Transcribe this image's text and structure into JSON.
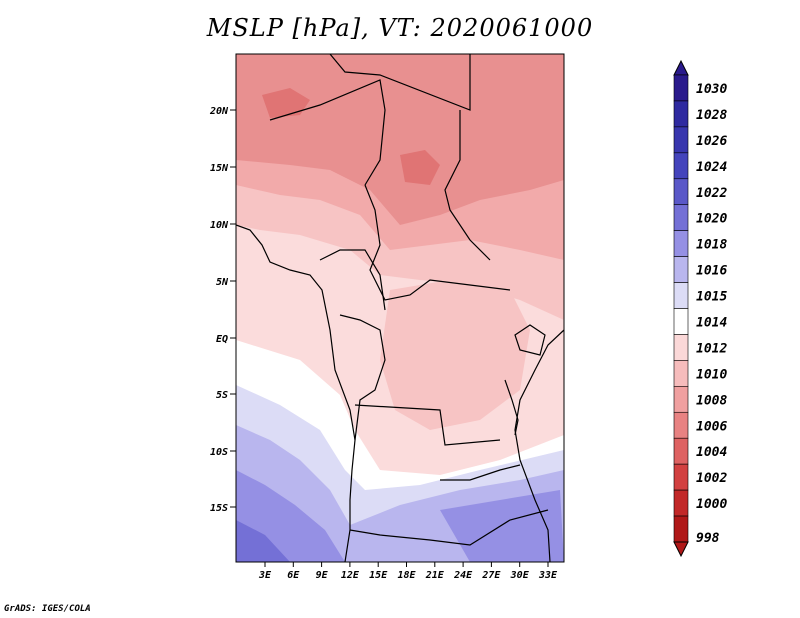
{
  "title": "MSLP [hPa], VT: 2020061000",
  "footer": "GrADS: IGES/COLA",
  "lat_ticks": [
    "20N",
    "15N",
    "10N",
    "5N",
    "EQ",
    "5S",
    "10S",
    "15S"
  ],
  "lon_ticks": [
    "3E",
    "6E",
    "9E",
    "12E",
    "15E",
    "18E",
    "21E",
    "24E",
    "27E",
    "30E",
    "33E"
  ],
  "colorbar": {
    "levels": [
      "1030",
      "1028",
      "1026",
      "1024",
      "1022",
      "1020",
      "1018",
      "1016",
      "1015",
      "1014",
      "1012",
      "1010",
      "1008",
      "1006",
      "1004",
      "1002",
      "1000",
      "998"
    ],
    "colors": [
      "#2a1a8c",
      "#2f2aa0",
      "#3836ae",
      "#4444bc",
      "#5a58c8",
      "#7470d6",
      "#9590e4",
      "#b9b6ee",
      "#dcdcf6",
      "#ffffff",
      "#fbd8d8",
      "#f6bcbc",
      "#f0a0a0",
      "#e88282",
      "#de6262",
      "#d24040",
      "#c22828",
      "#b01818"
    ]
  },
  "map_colors": {
    "lowest": "#e07474",
    "low": "#e89090",
    "mid_low": "#f2aaaa",
    "mid": "#f7c4c4",
    "high_mid": "#fbdcdc",
    "neutral": "#ffffff",
    "high1": "#dcdcf6",
    "high2": "#b9b6ee",
    "high3": "#9590e4",
    "high4": "#7470d6"
  }
}
